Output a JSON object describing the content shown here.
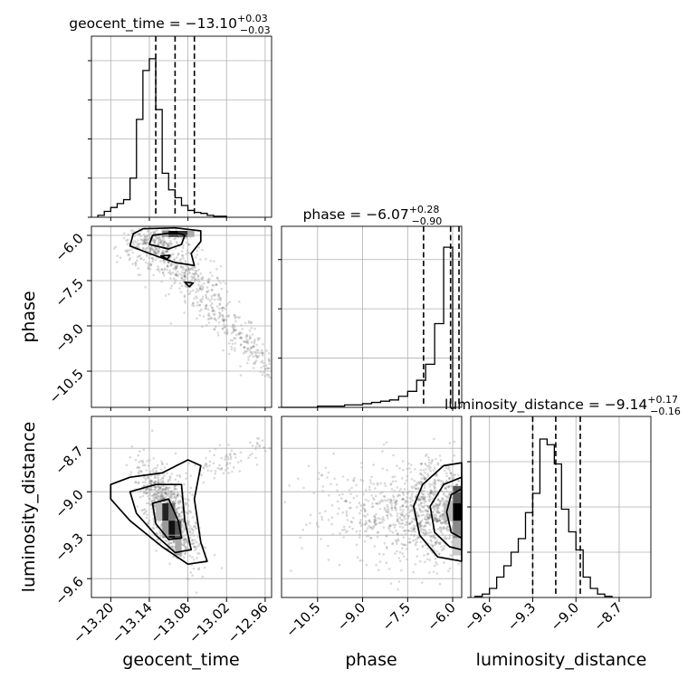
{
  "chart_data": {
    "type": "corner",
    "parameters": [
      {
        "key": "geocent_time",
        "label": "geocent_time",
        "range": [
          -13.23,
          -12.95
        ],
        "ticks": [
          -13.2,
          -13.14,
          -13.08,
          -13.02,
          -12.96
        ],
        "tick_labels": [
          "−13.20",
          "−13.14",
          "−13.08",
          "−13.02",
          "−12.96"
        ]
      },
      {
        "key": "phase",
        "label": "phase",
        "range": [
          -11.7,
          -5.7
        ],
        "ticks": [
          -10.5,
          -9.0,
          -7.5,
          -6.0
        ],
        "tick_labels": [
          "−10.5",
          "−9.0",
          "−7.5",
          "−6.0"
        ]
      },
      {
        "key": "luminosity_distance",
        "label": "luminosity_distance",
        "range": [
          -9.73,
          -8.48
        ],
        "ticks": [
          -9.6,
          -9.3,
          -9.0,
          -8.7
        ],
        "tick_labels": [
          "−9.6",
          "−9.3",
          "−9.0",
          "−8.7"
        ]
      }
    ],
    "titles": [
      {
        "name": "geocent_time = −13.10",
        "plus": "+0.03",
        "minus": "−0.03"
      },
      {
        "name": "phase = −6.07",
        "plus": "+0.28",
        "minus": "−0.90"
      },
      {
        "name": "luminosity_distance = −9.14",
        "plus": "+0.17",
        "minus": "−0.16"
      }
    ],
    "histograms": [
      {
        "param": "geocent_time",
        "bin_edges_start": -13.22,
        "bin_width": 0.01,
        "counts": [
          2,
          6,
          10,
          14,
          18,
          40,
          100,
          150,
          162,
          110,
          45,
          28,
          20,
          12,
          7,
          5,
          4,
          2,
          1,
          1
        ],
        "ymax": 185,
        "quantiles": [
          -13.13,
          -13.1,
          -13.07
        ]
      },
      {
        "param": "phase",
        "bin_edges_start": -11.7,
        "bin_width": 0.3,
        "counts": [
          0,
          0,
          0,
          0,
          1,
          1,
          1,
          2,
          2,
          3,
          4,
          5,
          6,
          9,
          13,
          22,
          35,
          68,
          130
        ],
        "ymax": 147,
        "quantiles": [
          -6.97,
          -6.07,
          -5.79
        ]
      },
      {
        "param": "luminosity_distance",
        "bin_edges_start": -9.7,
        "bin_width": 0.05,
        "counts": [
          1,
          3,
          8,
          18,
          28,
          40,
          52,
          75,
          92,
          140,
          135,
          118,
          78,
          58,
          42,
          18,
          8,
          3,
          1
        ],
        "ymax": 160,
        "quantiles": [
          -9.3,
          -9.14,
          -8.97
        ]
      }
    ],
    "density_panels": [
      {
        "x": "geocent_time",
        "y": "phase"
      },
      {
        "x": "geocent_time",
        "y": "luminosity_distance"
      },
      {
        "x": "phase",
        "y": "luminosity_distance"
      }
    ],
    "grid": true
  }
}
